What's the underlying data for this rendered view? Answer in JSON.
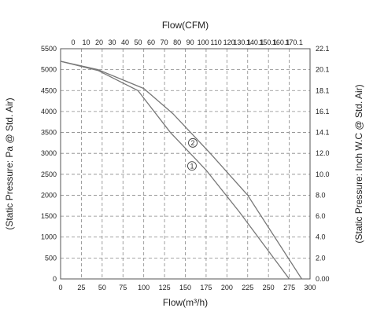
{
  "chart_data": {
    "type": "line",
    "xlabel_bottom": "Flow(m³/h)",
    "xlabel_top": "Flow(CFM)",
    "ylabel_left": "(Static Pressure: Pa @ Std. Air)",
    "ylabel_right": "(Static Pressure: Inch W.C @ Std. Air)",
    "xlim": [
      0,
      300
    ],
    "ylim": [
      0,
      5500
    ],
    "grid": true,
    "bottom_ticks": [
      "0",
      "25",
      "50",
      "75",
      "100",
      "125",
      "150",
      "175",
      "200",
      "225",
      "250",
      "275",
      "300"
    ],
    "top_ticks": [
      "0",
      "10",
      "20",
      "30",
      "40",
      "50",
      "60",
      "70",
      "80",
      "90",
      "100",
      "110",
      "120",
      "130.1",
      "140.1",
      "150.1",
      "160.1",
      "170.1"
    ],
    "left_ticks": [
      "0",
      "500",
      "1000",
      "1500",
      "2000",
      "2500",
      "3000",
      "3500",
      "4000",
      "4500",
      "5000",
      "5500"
    ],
    "right_ticks": [
      "0.00",
      "2.0",
      "4.0",
      "6.0",
      "8.0",
      "10.0",
      "12.0",
      "14.1",
      "16.1",
      "18.1",
      "20.1",
      "22.1"
    ],
    "series": [
      {
        "marker": "①",
        "x": [
          0,
          45,
          93,
          132,
          175,
          215,
          275
        ],
        "y": [
          5200,
          4980,
          4500,
          3500,
          2600,
          1600,
          0
        ],
        "label_at": [
          158,
          2700
        ]
      },
      {
        "marker": "②",
        "x": [
          0,
          45,
          100,
          135,
          180,
          225,
          290
        ],
        "y": [
          5200,
          5000,
          4550,
          3950,
          3000,
          2000,
          0
        ],
        "label_at": [
          159,
          3250
        ]
      }
    ]
  }
}
